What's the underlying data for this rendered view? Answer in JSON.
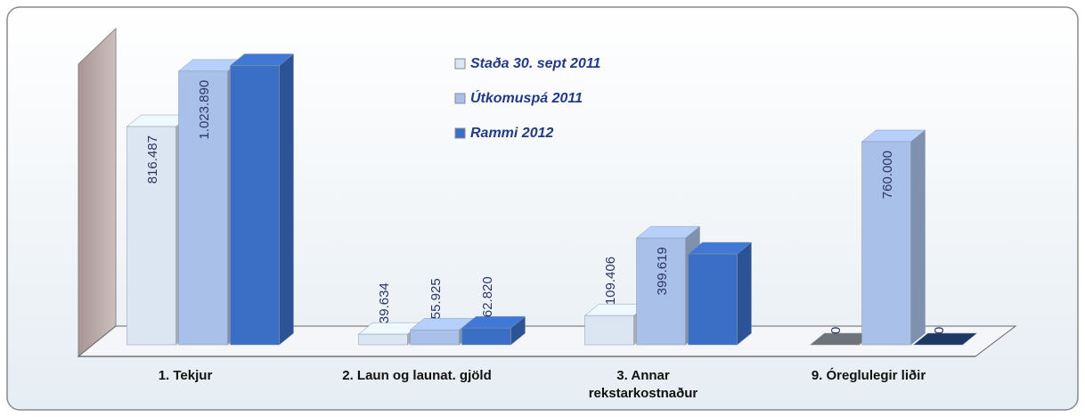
{
  "chart_data": {
    "type": "bar3d",
    "categories": [
      "1. Tekjur",
      "2. Laun og launat. gjöld",
      "3. Annar rekstarkostnaður",
      "9. Óreglulegir liðir"
    ],
    "series": [
      {
        "name": "Staða 30. sept 2011",
        "color": "#dce6f2",
        "values": [
          816487,
          39634,
          109406,
          0
        ],
        "value_labels": [
          "816.487",
          "39.634",
          "109.406",
          "0"
        ]
      },
      {
        "name": "Útkomuspá 2011",
        "color": "#a9c1e8",
        "values": [
          1023890,
          55925,
          399619,
          760000
        ],
        "value_labels": [
          "1.023.890",
          "55.925",
          "399.619",
          "760.000"
        ]
      },
      {
        "name": "Rammi 2012",
        "color": "#3b6fc6",
        "values": [
          1045000,
          62820,
          340000,
          0
        ],
        "value_labels": [
          null,
          "62.820",
          null,
          "0"
        ]
      }
    ],
    "ylim": [
      0,
      1100000
    ],
    "legend": "top-center"
  }
}
